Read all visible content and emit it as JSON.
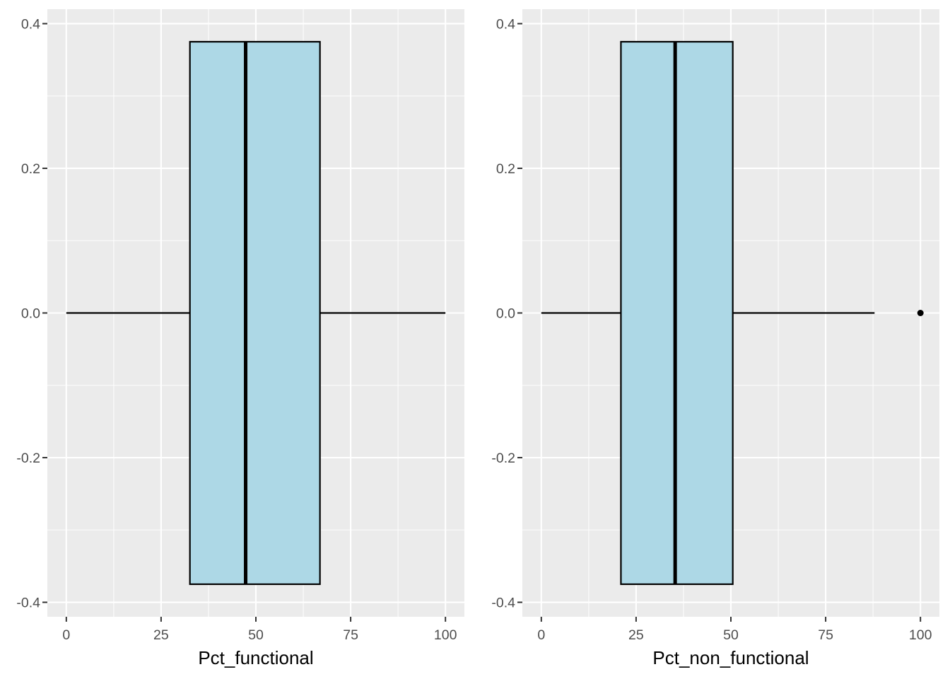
{
  "colors": {
    "panel_background": "#ebebeb",
    "grid": "#ffffff",
    "box_fill": "#add8e6",
    "box_stroke": "#000000",
    "tick_label": "#4d4d4d"
  },
  "chart_data": [
    {
      "type": "boxplot",
      "xlabel": "Pct_functional",
      "ylabel": "",
      "xlim": [
        -5,
        105
      ],
      "ylim": [
        -0.42,
        0.42
      ],
      "x_ticks": [
        0,
        25,
        50,
        75,
        100
      ],
      "x_tick_labels": [
        "0",
        "25",
        "50",
        "75",
        "100"
      ],
      "y_ticks": [
        -0.4,
        -0.2,
        0.0,
        0.2,
        0.4
      ],
      "y_tick_labels": [
        "-0.4",
        "-0.2",
        "0.0",
        "0.2",
        "0.4"
      ],
      "box": {
        "whisker_low": 0,
        "q1": 32.6,
        "median": 47.3,
        "q3": 66.9,
        "whisker_high": 100,
        "outliers": []
      },
      "box_y_extent": [
        -0.375,
        0.375
      ]
    },
    {
      "type": "boxplot",
      "xlabel": "Pct_non_functional",
      "ylabel": "",
      "xlim": [
        -5,
        105
      ],
      "ylim": [
        -0.42,
        0.42
      ],
      "x_ticks": [
        0,
        25,
        50,
        75,
        100
      ],
      "x_tick_labels": [
        "0",
        "25",
        "50",
        "75",
        "100"
      ],
      "y_ticks": [
        -0.4,
        -0.2,
        0.0,
        0.2,
        0.4
      ],
      "y_tick_labels": [
        "-0.4",
        "-0.2",
        "0.0",
        "0.2",
        "0.4"
      ],
      "box": {
        "whisker_low": 0,
        "q1": 21.0,
        "median": 35.3,
        "q3": 50.5,
        "whisker_high": 87.9,
        "outliers": [
          100
        ]
      },
      "box_y_extent": [
        -0.375,
        0.375
      ]
    }
  ]
}
